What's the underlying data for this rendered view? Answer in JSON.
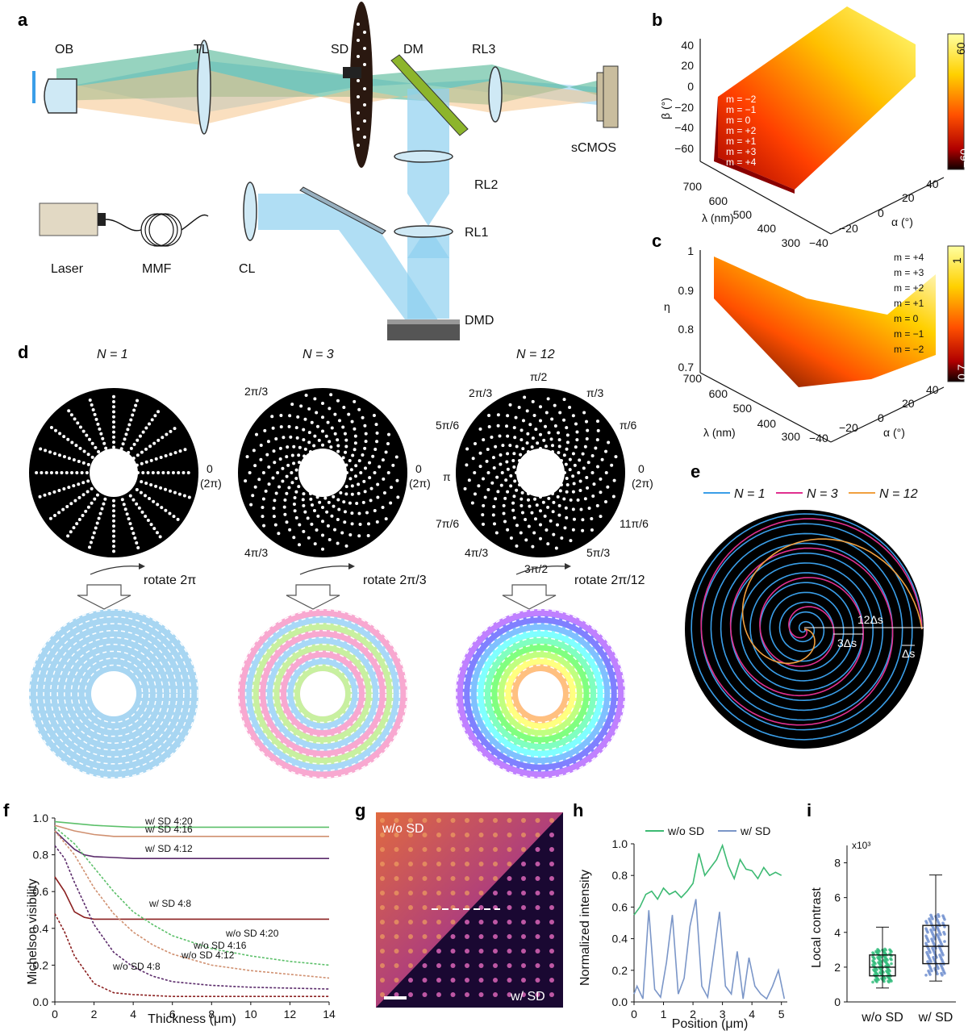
{
  "panels": {
    "a": "a",
    "b": "b",
    "c": "c",
    "d": "d",
    "e": "e",
    "f": "f",
    "g": "g",
    "h": "h",
    "i": "i"
  },
  "panel_a": {
    "labels": {
      "ob": "OB",
      "tl": "TL",
      "sd": "SD",
      "dm": "DM",
      "rl3": "RL3",
      "scmos": "sCMOS",
      "rl2": "RL2",
      "rl1": "RL1",
      "laser": "Laser",
      "mmf": "MMF",
      "cl": "CL",
      "dmd": "DMD"
    },
    "colors": {
      "green": "#3fae8a",
      "orange": "#f5c48a",
      "blue": "#8fd0f0",
      "dm": "#8db52c"
    }
  },
  "panel_b": {
    "ylabel": "β (°)",
    "xlabel": "α (°)",
    "zlabel": "λ (nm)",
    "yticks": [
      "40",
      "20",
      "0",
      "−20",
      "−40",
      "−60"
    ],
    "xticks": [
      "−40",
      "−20",
      "0",
      "20",
      "40"
    ],
    "zticks": [
      "700",
      "600",
      "500",
      "400",
      "300"
    ],
    "orders": [
      "m = −2",
      "m = −1",
      "m = 0",
      "m = +2",
      "m = +1",
      "m = +3",
      "m = +4"
    ],
    "cbar": {
      "max": "60",
      "min": "−60"
    }
  },
  "panel_c": {
    "ylabel": "η",
    "xlabel": "α (°)",
    "zlabel": "λ (nm)",
    "yticks": [
      "1",
      "0.9",
      "0.8",
      "0.7"
    ],
    "xticks": [
      "−40",
      "−20",
      "0",
      "20",
      "40"
    ],
    "zticks": [
      "700",
      "600",
      "500",
      "400",
      "300"
    ],
    "orders": [
      "m = +4",
      "m = +3",
      "m = +2",
      "m = +1",
      "m = 0",
      "m = −1",
      "m = −2"
    ],
    "cbar": {
      "max": "1",
      "min": "0.7"
    }
  },
  "panel_d": {
    "titles": [
      "N = 1",
      "N = 3",
      "N = 12"
    ],
    "disk1": {
      "zero": "0",
      "twopi": "(2π)"
    },
    "disk3": {
      "a": "2π/3",
      "b": "4π/3",
      "zero": "0",
      "twopi": "(2π)"
    },
    "disk12": {
      "p12": "π/2",
      "p23": "2π/3",
      "p3": "π/3",
      "p56": "5π/6",
      "p6": "π/6",
      "pi": "π",
      "zero": "0",
      "twopi": "(2π)",
      "p76": "7π/6",
      "p116": "11π/6",
      "p43": "4π/3",
      "p53": "5π/3",
      "p32": "3π/2"
    },
    "rotate": [
      "rotate 2π",
      "rotate 2π/3",
      "rotate 2π/12"
    ]
  },
  "panel_e": {
    "legend": [
      "N = 1",
      "N = 3",
      "N = 12"
    ],
    "colors": [
      "#3a9ee8",
      "#e0308f",
      "#f0a040"
    ],
    "annotations": {
      "a": "12Δs",
      "b": "3Δs",
      "c": "Δs"
    }
  },
  "chart_data": [
    {
      "type": "line",
      "panel": "f",
      "xlabel": "Thickness (μm)",
      "ylabel": "Michelson visibility",
      "xlim": [
        0,
        14
      ],
      "ylim": [
        0,
        1.0
      ],
      "xticks": [
        "0",
        "2",
        "4",
        "6",
        "8",
        "10",
        "12",
        "14"
      ],
      "yticks": [
        "0.0",
        "0.2",
        "0.4",
        "0.6",
        "0.8",
        "1.0"
      ],
      "series": [
        {
          "name": "w/ SD 4:20",
          "color": "#5cc06a",
          "x": [
            0,
            1,
            2,
            3,
            4,
            6,
            8,
            10,
            12,
            14
          ],
          "values": [
            0.98,
            0.97,
            0.96,
            0.955,
            0.95,
            0.95,
            0.95,
            0.95,
            0.95,
            0.95
          ]
        },
        {
          "name": "w/ SD 4:16",
          "color": "#d09070",
          "x": [
            0,
            1,
            2,
            3,
            4,
            6,
            8,
            10,
            12,
            14
          ],
          "values": [
            0.96,
            0.93,
            0.91,
            0.9,
            0.9,
            0.9,
            0.9,
            0.9,
            0.9,
            0.9
          ]
        },
        {
          "name": "w/ SD 4:12",
          "color": "#5a2a6a",
          "x": [
            0,
            0.5,
            1,
            1.5,
            2,
            3,
            4,
            6,
            8,
            10,
            12,
            14
          ],
          "values": [
            0.93,
            0.88,
            0.83,
            0.8,
            0.79,
            0.785,
            0.78,
            0.78,
            0.78,
            0.78,
            0.78,
            0.78
          ]
        },
        {
          "name": "w/ SD 4:8",
          "color": "#8b2020",
          "x": [
            0,
            0.5,
            1,
            1.5,
            2,
            3,
            4,
            6,
            8,
            10,
            12,
            14
          ],
          "values": [
            0.68,
            0.6,
            0.49,
            0.46,
            0.45,
            0.45,
            0.45,
            0.45,
            0.45,
            0.45,
            0.45,
            0.45
          ]
        },
        {
          "name": "w/o SD 4:20",
          "color": "#5cc06a",
          "dashed": true,
          "x": [
            0,
            1,
            2,
            3,
            4,
            5,
            6,
            8,
            10,
            12,
            14
          ],
          "values": [
            0.95,
            0.86,
            0.73,
            0.6,
            0.49,
            0.42,
            0.36,
            0.29,
            0.25,
            0.22,
            0.2
          ]
        },
        {
          "name": "w/o SD 4:16",
          "color": "#d09070",
          "dashed": true,
          "x": [
            0,
            1,
            2,
            3,
            4,
            5,
            6,
            8,
            10,
            12,
            14
          ],
          "values": [
            0.93,
            0.8,
            0.62,
            0.48,
            0.38,
            0.31,
            0.26,
            0.2,
            0.17,
            0.15,
            0.13
          ]
        },
        {
          "name": "w/o SD 4:12",
          "color": "#5a2a6a",
          "dashed": true,
          "x": [
            0,
            0.5,
            1,
            2,
            3,
            4,
            5,
            6,
            8,
            10,
            12,
            14
          ],
          "values": [
            0.85,
            0.78,
            0.65,
            0.42,
            0.27,
            0.19,
            0.14,
            0.11,
            0.09,
            0.08,
            0.075,
            0.07
          ]
        },
        {
          "name": "w/o SD 4:8",
          "color": "#8b2020",
          "dashed": true,
          "x": [
            0,
            0.5,
            1,
            2,
            3,
            4,
            6,
            8,
            10,
            12,
            14
          ],
          "values": [
            0.48,
            0.38,
            0.25,
            0.1,
            0.05,
            0.04,
            0.03,
            0.03,
            0.03,
            0.03,
            0.03
          ]
        }
      ]
    },
    {
      "type": "line",
      "panel": "h",
      "xlabel": "Position (μm)",
      "ylabel": "Normalized intensity",
      "xlim": [
        0,
        5.2
      ],
      "ylim": [
        0,
        1.0
      ],
      "xticks": [
        "0",
        "1",
        "2",
        "3",
        "4",
        "5"
      ],
      "yticks": [
        "0.0",
        "0.2",
        "0.4",
        "0.6",
        "0.8",
        "1.0"
      ],
      "series": [
        {
          "name": "w/o SD",
          "color": "#3dba73",
          "x": [
            0,
            0.2,
            0.4,
            0.6,
            0.8,
            1.0,
            1.2,
            1.4,
            1.6,
            1.8,
            2.0,
            2.2,
            2.4,
            2.6,
            2.8,
            3.0,
            3.2,
            3.4,
            3.6,
            3.8,
            4.0,
            4.2,
            4.4,
            4.6,
            4.8,
            5.0
          ],
          "values": [
            0.55,
            0.6,
            0.68,
            0.7,
            0.65,
            0.72,
            0.68,
            0.7,
            0.66,
            0.7,
            0.75,
            0.94,
            0.8,
            0.85,
            0.9,
            0.99,
            0.86,
            0.78,
            0.9,
            0.84,
            0.83,
            0.78,
            0.85,
            0.8,
            0.82,
            0.8
          ]
        },
        {
          "name": "w/ SD",
          "color": "#7b96c8",
          "x": [
            0,
            0.1,
            0.3,
            0.5,
            0.7,
            0.9,
            1.1,
            1.3,
            1.5,
            1.7,
            1.9,
            2.1,
            2.3,
            2.5,
            2.7,
            2.9,
            3.1,
            3.3,
            3.5,
            3.7,
            3.9,
            4.1,
            4.3,
            4.5,
            4.7,
            4.9,
            5.1
          ],
          "values": [
            0.05,
            0.1,
            0.02,
            0.58,
            0.08,
            0.03,
            0.25,
            0.55,
            0.05,
            0.15,
            0.48,
            0.65,
            0.1,
            0.03,
            0.3,
            0.57,
            0.1,
            0.05,
            0.32,
            0.02,
            0.28,
            0.1,
            0.05,
            0.02,
            0.1,
            0.2,
            0.02
          ]
        }
      ]
    },
    {
      "type": "box",
      "panel": "i",
      "ylabel": "Local contrast",
      "yunit": "x10³",
      "ylim": [
        0,
        9
      ],
      "yticks": [
        "0",
        "2",
        "4",
        "6",
        "8"
      ],
      "categories": [
        "w/o SD",
        "w/ SD"
      ],
      "colors": [
        "#2dba78",
        "#6688cc"
      ],
      "boxes": [
        {
          "min": 0.8,
          "q1": 1.5,
          "median": 2.0,
          "q3": 2.7,
          "max": 4.3
        },
        {
          "min": 1.2,
          "q1": 2.2,
          "median": 3.2,
          "q3": 4.4,
          "max": 7.3
        }
      ]
    }
  ],
  "panel_g": {
    "top": "w/o SD",
    "bottom": "w/ SD"
  }
}
